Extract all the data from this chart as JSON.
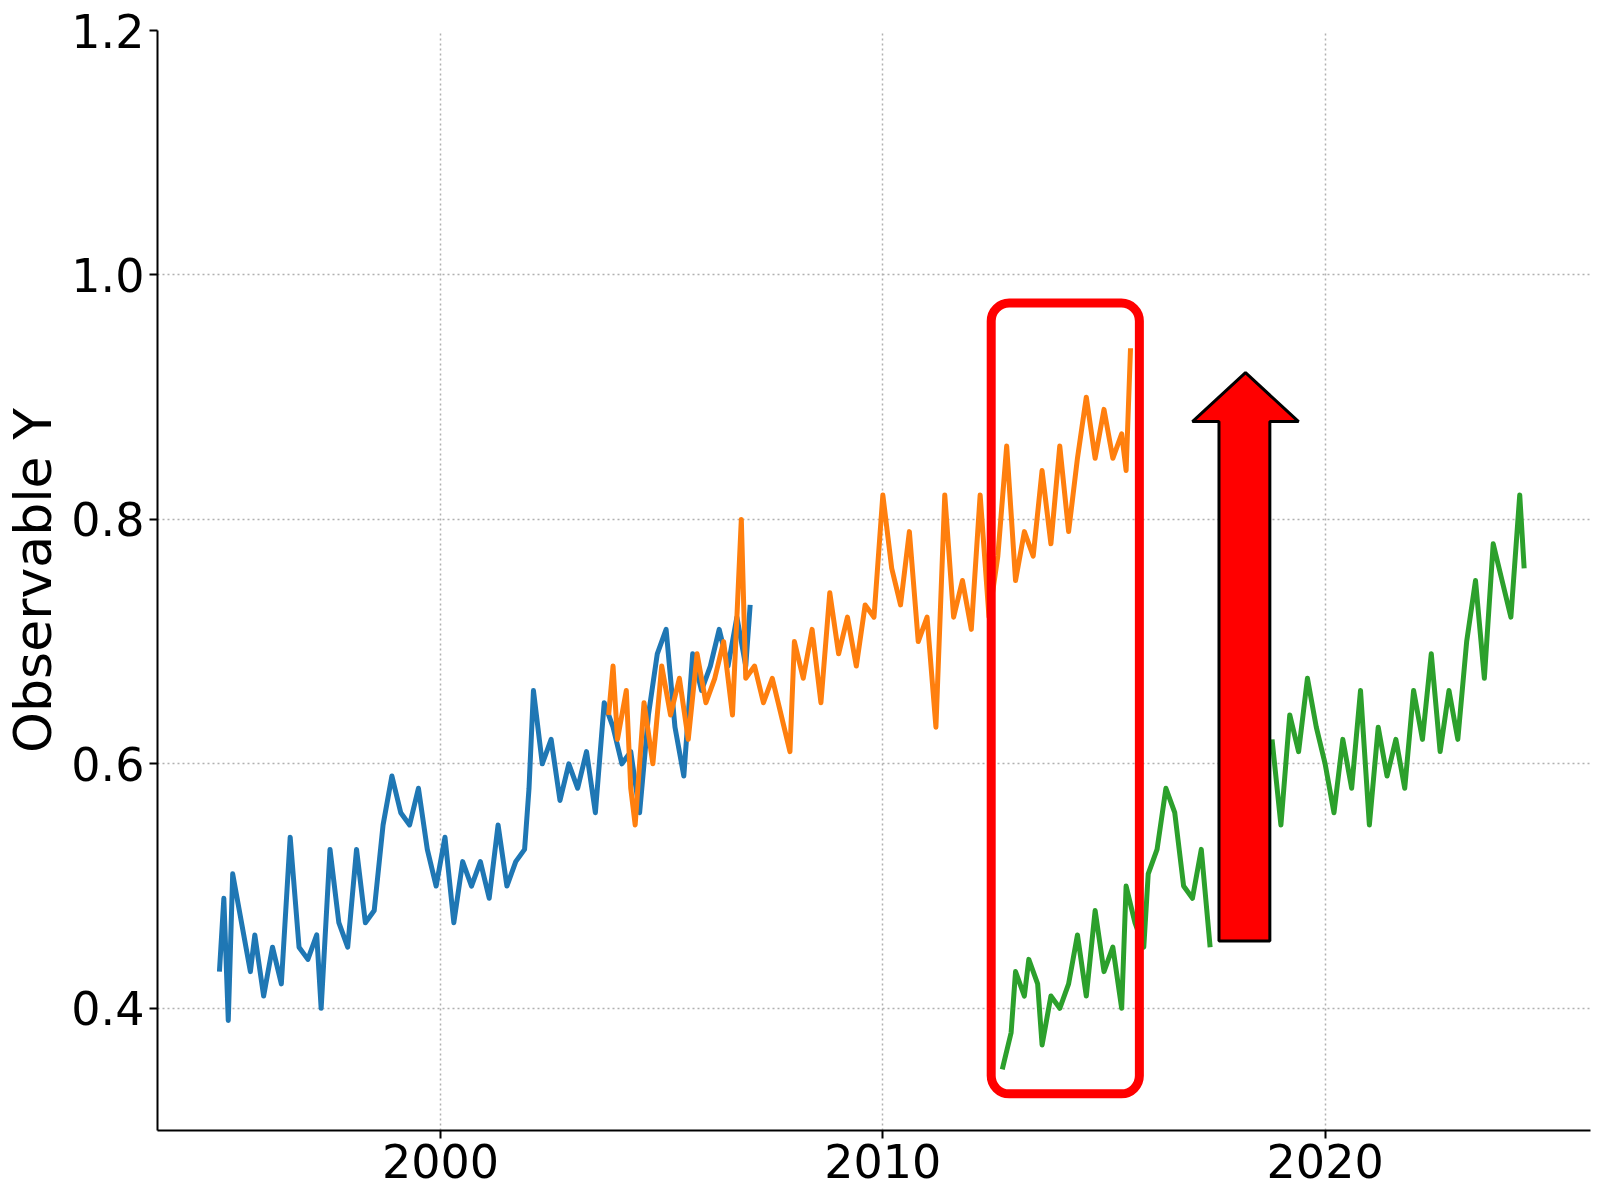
{
  "chart_data": {
    "type": "line",
    "ylabel": "Observable Y",
    "xlim": [
      1993.6,
      2026
    ],
    "ylim": [
      0.3,
      1.2
    ],
    "xticks": [
      2000,
      2010,
      2020
    ],
    "yticks": [
      0.4,
      0.6,
      0.8,
      {
        "value": 1.0,
        "label": "1.0"
      },
      1.2
    ],
    "grid": true,
    "line_style": "solid",
    "series": [
      {
        "color": "#1f77b4",
        "x": [
          1995.0,
          1995.1,
          1995.2,
          1995.3,
          1995.5,
          1995.7,
          1995.8,
          1996.0,
          1996.2,
          1996.4,
          1996.6,
          1996.8,
          1997.0,
          1997.2,
          1997.3,
          1997.5,
          1997.7,
          1997.9,
          1998.1,
          1998.3,
          1998.5,
          1998.7,
          1998.9,
          1999.1,
          1999.3,
          1999.5,
          1999.7,
          1999.9,
          2000.1,
          2000.3,
          2000.5,
          2000.7,
          2000.9,
          2001.1,
          2001.3,
          2001.5,
          2001.7,
          2001.9,
          2002.0,
          2002.1,
          2002.3,
          2002.5,
          2002.7,
          2002.9,
          2003.1,
          2003.3,
          2003.5,
          2003.7,
          2003.9,
          2004.1,
          2004.3,
          2004.5,
          2004.7,
          2004.9,
          2005.1,
          2005.3,
          2005.5,
          2005.7,
          2005.9,
          2006.1,
          2006.3,
          2006.5,
          2006.7,
          2006.9,
          2007.0
        ],
        "values": [
          0.43,
          0.49,
          0.39,
          0.51,
          0.47,
          0.43,
          0.46,
          0.41,
          0.45,
          0.42,
          0.54,
          0.45,
          0.44,
          0.46,
          0.4,
          0.53,
          0.47,
          0.45,
          0.53,
          0.47,
          0.48,
          0.55,
          0.59,
          0.56,
          0.55,
          0.58,
          0.53,
          0.5,
          0.54,
          0.47,
          0.52,
          0.5,
          0.52,
          0.49,
          0.55,
          0.5,
          0.52,
          0.53,
          0.58,
          0.66,
          0.6,
          0.62,
          0.57,
          0.6,
          0.58,
          0.61,
          0.56,
          0.65,
          0.63,
          0.6,
          0.61,
          0.56,
          0.64,
          0.69,
          0.71,
          0.63,
          0.59,
          0.69,
          0.66,
          0.68,
          0.71,
          0.68,
          0.72,
          0.68,
          0.73
        ]
      },
      {
        "color": "#ff7f0e",
        "x": [
          2003.8,
          2003.9,
          2004.0,
          2004.2,
          2004.3,
          2004.4,
          2004.6,
          2004.8,
          2005.0,
          2005.2,
          2005.4,
          2005.6,
          2005.8,
          2006.0,
          2006.2,
          2006.4,
          2006.6,
          2006.8,
          2006.9,
          2007.1,
          2007.3,
          2007.5,
          2007.7,
          2007.9,
          2008.0,
          2008.2,
          2008.4,
          2008.6,
          2008.8,
          2009.0,
          2009.2,
          2009.4,
          2009.6,
          2009.8,
          2010.0,
          2010.2,
          2010.4,
          2010.6,
          2010.8,
          2011.0,
          2011.2,
          2011.4,
          2011.6,
          2011.8,
          2012.0,
          2012.2,
          2012.4,
          2012.6,
          2012.8,
          2013.0,
          2013.2,
          2013.4,
          2013.6,
          2013.8,
          2014.0,
          2014.2,
          2014.4,
          2014.6,
          2014.8,
          2015.0,
          2015.2,
          2015.4,
          2015.5,
          2015.6
        ],
        "values": [
          0.64,
          0.68,
          0.62,
          0.66,
          0.58,
          0.55,
          0.65,
          0.6,
          0.68,
          0.64,
          0.67,
          0.62,
          0.69,
          0.65,
          0.67,
          0.7,
          0.64,
          0.8,
          0.67,
          0.68,
          0.65,
          0.67,
          0.64,
          0.61,
          0.7,
          0.67,
          0.71,
          0.65,
          0.74,
          0.69,
          0.72,
          0.68,
          0.73,
          0.72,
          0.82,
          0.76,
          0.73,
          0.79,
          0.7,
          0.72,
          0.63,
          0.82,
          0.72,
          0.75,
          0.71,
          0.82,
          0.72,
          0.77,
          0.86,
          0.75,
          0.79,
          0.77,
          0.84,
          0.78,
          0.86,
          0.79,
          0.85,
          0.9,
          0.85,
          0.89,
          0.85,
          0.87,
          0.84,
          0.94
        ]
      },
      {
        "color": "#2ca02c",
        "x": [
          2012.7,
          2012.9,
          2013.0,
          2013.2,
          2013.3,
          2013.5,
          2013.6,
          2013.8,
          2014.0,
          2014.2,
          2014.4,
          2014.6,
          2014.8,
          2015.0,
          2015.2,
          2015.4,
          2015.5,
          2015.7,
          2015.9,
          2016.0,
          2016.2,
          2016.4,
          2016.6,
          2016.8,
          2017.0,
          2017.2,
          2017.4,
          2017.6,
          2017.8,
          2018.0,
          2018.2,
          2018.4,
          2018.6,
          2018.8,
          2019.0,
          2019.2,
          2019.4,
          2019.6,
          2019.8,
          2020.0,
          2020.2,
          2020.4,
          2020.6,
          2020.8,
          2021.0,
          2021.2,
          2021.4,
          2021.6,
          2021.8,
          2022.0,
          2022.2,
          2022.4,
          2022.6,
          2022.8,
          2023.0,
          2023.2,
          2023.4,
          2023.6,
          2023.8,
          2024.0,
          2024.2,
          2024.4,
          2024.5
        ],
        "values": [
          0.35,
          0.38,
          0.43,
          0.41,
          0.44,
          0.42,
          0.37,
          0.41,
          0.4,
          0.42,
          0.46,
          0.41,
          0.48,
          0.43,
          0.45,
          0.4,
          0.5,
          0.47,
          0.45,
          0.51,
          0.53,
          0.58,
          0.56,
          0.5,
          0.49,
          0.53,
          0.45,
          null,
          null,
          null,
          null,
          null,
          null,
          0.62,
          0.55,
          0.64,
          0.61,
          0.67,
          0.63,
          0.6,
          0.56,
          0.62,
          0.58,
          0.66,
          0.55,
          0.63,
          0.59,
          0.62,
          0.58,
          0.66,
          0.62,
          0.69,
          0.61,
          0.66,
          0.62,
          0.7,
          0.75,
          0.67,
          0.78,
          0.75,
          0.72,
          0.82,
          0.76
        ]
      }
    ]
  }
}
